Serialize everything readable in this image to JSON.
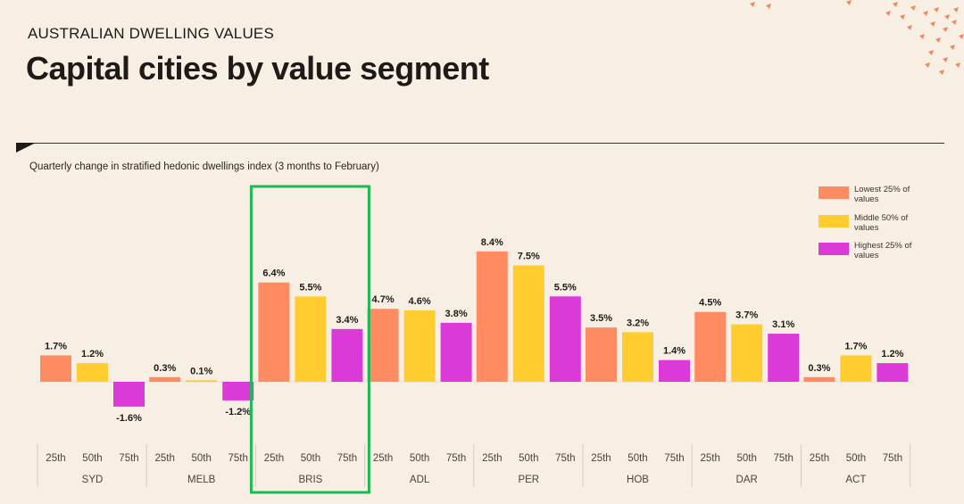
{
  "header": {
    "kicker": "AUSTRALIAN DWELLING VALUES",
    "title": "Capital cities by value segment"
  },
  "chart_data": {
    "type": "bar",
    "subtitle": "Quarterly change in stratified hedonic dwellings index (3 months to February)",
    "cities": [
      "SYD",
      "MELB",
      "BRIS",
      "ADL",
      "PER",
      "HOB",
      "DAR",
      "ACT"
    ],
    "segments": [
      "25th",
      "50th",
      "75th"
    ],
    "series": [
      {
        "name": "Lowest 25% of values",
        "color": "#fe8b62",
        "values": [
          1.7,
          0.3,
          6.4,
          4.7,
          8.4,
          3.5,
          4.5,
          0.3
        ]
      },
      {
        "name": "Middle 50% of values",
        "color": "#ffcd30",
        "values": [
          1.2,
          0.1,
          5.5,
          4.6,
          7.5,
          3.2,
          3.7,
          1.7
        ]
      },
      {
        "name": "Highest 25% of values",
        "color": "#dc3ad8",
        "values": [
          -1.6,
          -1.2,
          3.4,
          3.8,
          5.5,
          1.4,
          3.1,
          1.2
        ]
      }
    ],
    "value_labels": [
      [
        "1.7%",
        "1.2%",
        "-1.6%"
      ],
      [
        "0.3%",
        "0.1%",
        "-1.2%"
      ],
      [
        "6.4%",
        "5.5%",
        "3.4%"
      ],
      [
        "4.7%",
        "4.6%",
        "3.8%"
      ],
      [
        "8.4%",
        "7.5%",
        "5.5%"
      ],
      [
        "3.5%",
        "3.2%",
        "1.4%"
      ],
      [
        "4.5%",
        "3.7%",
        "3.1%"
      ],
      [
        "0.3%",
        "1.7%",
        "1.2%"
      ]
    ],
    "highlighted_city": "BRIS",
    "highlight_color": "#1db954",
    "legend_position": "top-right",
    "ylim": [
      -2,
      9
    ]
  }
}
